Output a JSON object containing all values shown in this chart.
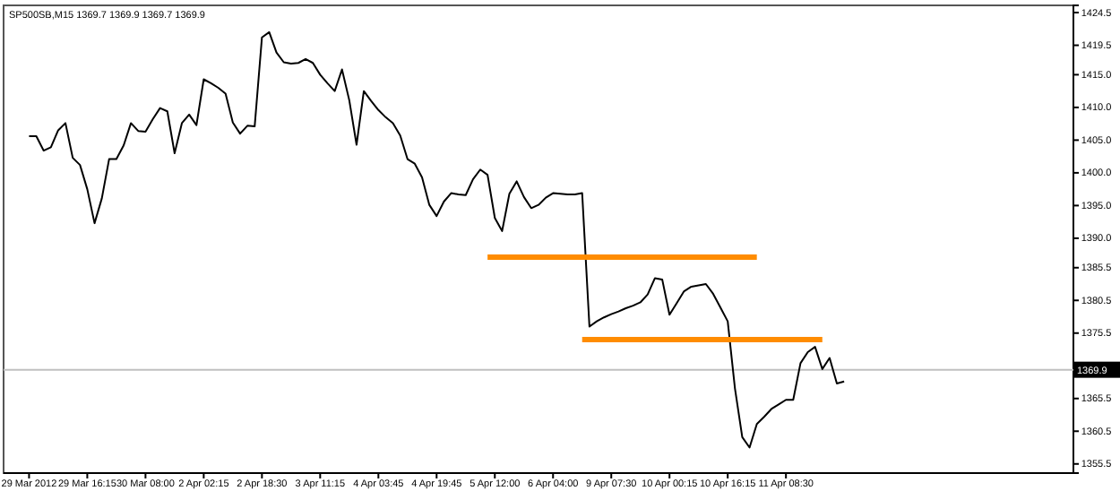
{
  "chart_data": {
    "type": "line",
    "title": "SP500SB,M15  1369.7 1369.9 1369.7 1369.9",
    "categories": [
      "29 Mar 2012",
      null,
      null,
      null,
      null,
      null,
      null,
      null,
      "29 Mar 16:15",
      null,
      null,
      null,
      null,
      null,
      null,
      null,
      "30 Mar 08:00",
      null,
      null,
      null,
      null,
      null,
      null,
      null,
      "2 Apr 02:15",
      null,
      null,
      null,
      null,
      null,
      null,
      null,
      "2 Apr 18:30",
      null,
      null,
      null,
      null,
      null,
      null,
      null,
      "3 Apr 11:15",
      null,
      null,
      null,
      null,
      null,
      null,
      null,
      "4 Apr 03:45",
      null,
      null,
      null,
      null,
      null,
      null,
      null,
      "4 Apr 19:45",
      null,
      null,
      null,
      null,
      null,
      null,
      null,
      "5 Apr 12:00",
      null,
      null,
      null,
      null,
      null,
      null,
      null,
      "6 Apr 04:00",
      null,
      null,
      null,
      null,
      null,
      null,
      null,
      "9 Apr 07:30",
      null,
      null,
      null,
      null,
      null,
      null,
      null,
      "10 Apr 00:15",
      null,
      null,
      null,
      null,
      null,
      null,
      null,
      "10 Apr 16:15",
      null,
      null,
      null,
      null,
      null,
      null,
      null,
      "11 Apr 08:30",
      null,
      null,
      null,
      null,
      null,
      null,
      null,
      null,
      null,
      null,
      null,
      null,
      null,
      null,
      null,
      null,
      null,
      null,
      null,
      null,
      null,
      null,
      null,
      null,
      null,
      null,
      null,
      null,
      null,
      null,
      null,
      null,
      null,
      null,
      null,
      null
    ],
    "ylim": [
      1354.1,
      1425.6
    ],
    "yticks": [
      1424.5,
      1419.5,
      {
        "value": 1415,
        "label": "1415.0"
      },
      {
        "value": 1410,
        "label": "1410.0"
      },
      {
        "value": 1405,
        "label": "1405.0"
      },
      {
        "value": 1400,
        "label": "1400.0"
      },
      {
        "value": 1395,
        "label": "1395.0"
      },
      {
        "value": 1390,
        "label": "1390.0"
      },
      1385.5,
      1380.5,
      1375.5,
      1365.5,
      1360.5,
      1355.5
    ],
    "grid": false,
    "ref_lines": [
      {
        "axis": "y",
        "value": 1369.9,
        "label": "1369.9",
        "color": "#c0c0c0"
      }
    ],
    "series": [
      {
        "color": "#000000",
        "values": [
          1405.6,
          1405.6,
          1403.4,
          1403.9,
          1406.5,
          1407.6,
          1402.3,
          1401.2,
          1397.5,
          1392.3,
          1396.1,
          1402.1,
          1402.1,
          1404.2,
          1407.6,
          1406.4,
          1406.3,
          1408.2,
          1409.9,
          1409.4,
          1403.0,
          1407.6,
          1408.9,
          1407.3,
          1414.3,
          1413.7,
          1413.0,
          1412.1,
          1407.7,
          1406.0,
          1407.2,
          1407.1,
          1420.7,
          1421.5,
          1418.4,
          1416.9,
          1416.7,
          1416.8,
          1417.4,
          1416.8,
          1415.0,
          1413.7,
          1412.5,
          1415.8,
          1411.1,
          1404.3,
          1412.5,
          1411.0,
          1409.6,
          1408.5,
          1407.6,
          1405.7,
          1402.1,
          1401.4,
          1399.3,
          1395.1,
          1393.4,
          1395.6,
          1396.9,
          1396.7,
          1396.6,
          1399.0,
          1400.5,
          1399.7,
          1393.1,
          1391.1,
          1396.8,
          1398.7,
          1396.3,
          1394.6,
          1395.1,
          1396.2,
          1396.9,
          1396.8,
          1396.7,
          1396.7,
          1396.9,
          1376.5,
          1377.3,
          1377.9,
          1378.4,
          1378.8,
          1379.3,
          1379.7,
          1380.2,
          1381.4,
          1383.9,
          1383.7,
          1378.3,
          1380.1,
          1381.9,
          1382.6,
          1382.8,
          1383.0,
          1381.5,
          1379.4,
          1377.3,
          1367.0,
          1359.6,
          1358.0,
          1361.6,
          1362.7,
          1363.9,
          1364.6,
          1365.3,
          1365.3,
          1370.9,
          1372.6,
          1373.4,
          1370.0,
          1371.7,
          1367.8,
          1368.1,
          null,
          null,
          null,
          null,
          null,
          null,
          null,
          null,
          null,
          null,
          null,
          null,
          null,
          null,
          null,
          null,
          null,
          null,
          null,
          null,
          null,
          null,
          null,
          null,
          null,
          null,
          null,
          null
        ]
      },
      {
        "color": "#ff8c00",
        "values": [
          null,
          null,
          null,
          null,
          null,
          null,
          null,
          null,
          null,
          null,
          null,
          null,
          null,
          null,
          null,
          null,
          null,
          null,
          null,
          null,
          null,
          null,
          null,
          null,
          null,
          null,
          null,
          null,
          null,
          null,
          null,
          null,
          null,
          null,
          null,
          null,
          null,
          null,
          null,
          null,
          null,
          null,
          null,
          null,
          null,
          null,
          null,
          null,
          null,
          null,
          null,
          null,
          null,
          null,
          null,
          null,
          null,
          null,
          null,
          null,
          null,
          null,
          null,
          1387.1,
          1387.1,
          1387.1,
          1387.1,
          1387.1,
          1387.1,
          1387.1,
          1387.1,
          1387.1,
          1387.1,
          1387.1,
          1387.1,
          1387.1,
          1387.1,
          1387.1,
          1387.1,
          1387.1,
          1387.1,
          1387.1,
          1387.1,
          1387.1,
          1387.1,
          1387.1,
          1387.1,
          1387.1,
          1387.1,
          1387.1,
          1387.1,
          1387.1,
          1387.1,
          1387.1,
          1387.1,
          1387.1,
          1387.1,
          1387.1,
          1387.1,
          1387.1,
          1387.1,
          null,
          null,
          null,
          null,
          null,
          null,
          null,
          null,
          null,
          null,
          null,
          null,
          null,
          null,
          null,
          null,
          null,
          null,
          null,
          null,
          null,
          null,
          null,
          null,
          null,
          null,
          null,
          null,
          null,
          null,
          null,
          null,
          null,
          null,
          null,
          null,
          null,
          null,
          null,
          null
        ]
      },
      {
        "color": "#ff8c00",
        "values": [
          null,
          null,
          null,
          null,
          null,
          null,
          null,
          null,
          null,
          null,
          null,
          null,
          null,
          null,
          null,
          null,
          null,
          null,
          null,
          null,
          null,
          null,
          null,
          null,
          null,
          null,
          null,
          null,
          null,
          null,
          null,
          null,
          null,
          null,
          null,
          null,
          null,
          null,
          null,
          null,
          null,
          null,
          null,
          null,
          null,
          null,
          null,
          null,
          null,
          null,
          null,
          null,
          null,
          null,
          null,
          null,
          null,
          null,
          null,
          null,
          null,
          null,
          null,
          null,
          null,
          null,
          null,
          null,
          null,
          null,
          null,
          null,
          null,
          null,
          null,
          null,
          1374.5,
          1374.5,
          1374.5,
          1374.5,
          1374.5,
          1374.5,
          1374.5,
          1374.5,
          1374.5,
          1374.5,
          1374.5,
          1374.5,
          1374.5,
          1374.5,
          1374.5,
          1374.5,
          1374.5,
          1374.5,
          1374.5,
          1374.5,
          1374.5,
          1374.5,
          1374.5,
          1374.5,
          1374.5,
          1374.5,
          1374.5,
          1374.5,
          1374.5,
          1374.5,
          1374.5,
          1374.5,
          1374.5,
          1374.5,
          null,
          null,
          null,
          null,
          null,
          null,
          null,
          null,
          null,
          null,
          null,
          null,
          null,
          null,
          null,
          null,
          null,
          null,
          null,
          null,
          null,
          null,
          null,
          null,
          null,
          null,
          null,
          null,
          null,
          null,
          null
        ]
      }
    ]
  }
}
